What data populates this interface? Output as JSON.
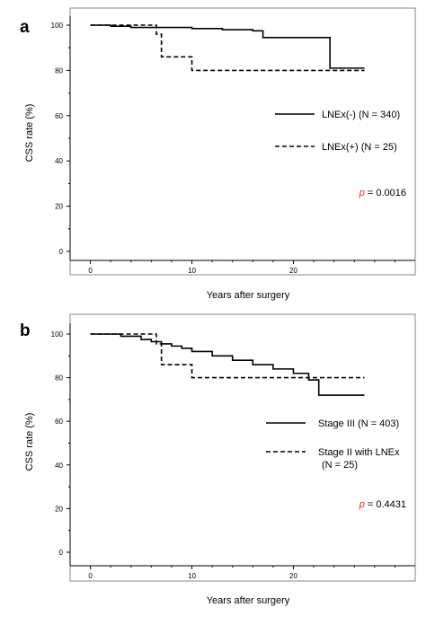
{
  "chart_data": [
    {
      "type": "line",
      "panel_label": "a",
      "title": "",
      "xlabel": "Years after surgery",
      "ylabel": "CSS rate (%)",
      "xlim": [
        -2,
        32
      ],
      "ylim": [
        0,
        100
      ],
      "x_ticks": [
        0,
        10,
        20
      ],
      "y_ticks": [
        0,
        20,
        40,
        60,
        80,
        100
      ],
      "legend_position": "right",
      "series": [
        {
          "name": "LNEx(-) (N = 340)",
          "style": "solid",
          "x": [
            0,
            2,
            4,
            10,
            13,
            16,
            17,
            22.8,
            23.6,
            27
          ],
          "y": [
            100,
            99.5,
            99,
            98.5,
            98,
            97.5,
            94.5,
            94.5,
            81,
            81
          ]
        },
        {
          "name": "LNEx(+) (N = 25)",
          "style": "dashed",
          "x": [
            0,
            5,
            6.5,
            7,
            10,
            27
          ],
          "y": [
            100,
            100,
            96,
            86,
            80,
            80
          ]
        }
      ],
      "annotation": {
        "p_label": "p",
        "p_value": "= 0.0016"
      }
    },
    {
      "type": "line",
      "panel_label": "b",
      "title": "",
      "xlabel": "Years after surgery",
      "ylabel": "CSS rate (%)",
      "xlim": [
        -2,
        32
      ],
      "ylim": [
        0,
        100
      ],
      "x_ticks": [
        0,
        10,
        20
      ],
      "y_ticks": [
        0,
        20,
        40,
        60,
        80,
        100
      ],
      "legend_position": "right",
      "series": [
        {
          "name": "Stage III (N = 403)",
          "style": "solid",
          "x": [
            0,
            3,
            5,
            6,
            7,
            8,
            9,
            10,
            12,
            14,
            16,
            18,
            20,
            21.5,
            22.5,
            27
          ],
          "y": [
            100,
            99,
            97.5,
            96.5,
            95.5,
            94.5,
            93.5,
            92,
            90,
            88,
            86,
            84,
            82,
            79,
            72,
            72
          ],
          "step": true
        },
        {
          "name": "Stage II with LNEx",
          "name_line2": "(N = 25)",
          "style": "dashed",
          "x": [
            0,
            5,
            6.5,
            7,
            10,
            27
          ],
          "y": [
            100,
            100,
            95.5,
            86,
            80,
            80
          ]
        }
      ],
      "annotation": {
        "p_label": "p",
        "p_value": "= 0.4431"
      }
    }
  ]
}
